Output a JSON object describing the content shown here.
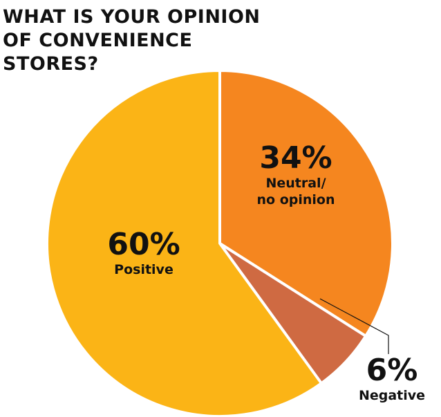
{
  "chart_data": {
    "type": "pie",
    "title": "WHAT IS YOUR OPINION OF CONVENIENCE STORES?",
    "categories": [
      "Neutral/ no opinion",
      "Negative",
      "Positive"
    ],
    "values": [
      34,
      6,
      60
    ],
    "value_labels": [
      "34%",
      "6%",
      "60%"
    ],
    "colors": [
      "#f5861f",
      "#cf6a42",
      "#fbb416"
    ]
  }
}
